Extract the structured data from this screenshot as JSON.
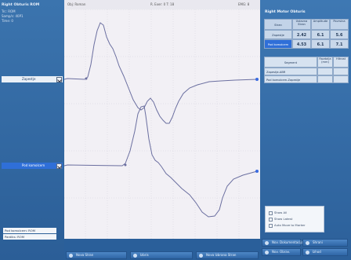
{
  "left": {
    "title": "Right Obturis ROM",
    "info_lines": [
      "Trc: ROM",
      "Samp/s: 40P1",
      "Time: 0"
    ],
    "trace_labels": [
      "Zapestje",
      "Pod komolcem"
    ],
    "fields": [
      "Pod komolcem: ROM",
      "Pardiks: ROM"
    ]
  },
  "graph_header": {
    "left_text": "Obj: Roman",
    "center_text": "R. Exer: 0  T: 18",
    "right_text": "EMG: 8"
  },
  "right": {
    "title": "Right Motor Obturis",
    "table1": {
      "headers": [
        "Stran",
        "Ustavna Stran",
        "Amplitude",
        "Povrsina"
      ],
      "rows": [
        {
          "name": "Zapestje",
          "values": [
            "2.42",
            "6.1",
            "5.6"
          ]
        },
        {
          "name": "Pod komolcem",
          "values": [
            "4.53",
            "6.1",
            "7.1"
          ]
        }
      ]
    },
    "table2": {
      "headers": [
        "Segment",
        "Razdalja (mm)",
        "Hitrost"
      ],
      "rows": [
        "Zapestje-ABR",
        "Pod komolcem-Zapestje"
      ]
    },
    "options": [
      "Show All",
      "Show Latest",
      "Auto Move to Marker"
    ]
  },
  "buttons": [
    "Nov. Dokumentacija",
    "Shrani",
    "Nov. Obrav.",
    "Izhod"
  ],
  "bottom_buttons": [
    "Nova Stran",
    "Izbris",
    "Nova Izbrana Stran"
  ],
  "colors": {
    "trace": "#6b6fa0",
    "active_label": "#2f6fd8",
    "grid_bg": "#f2f0f5"
  }
}
